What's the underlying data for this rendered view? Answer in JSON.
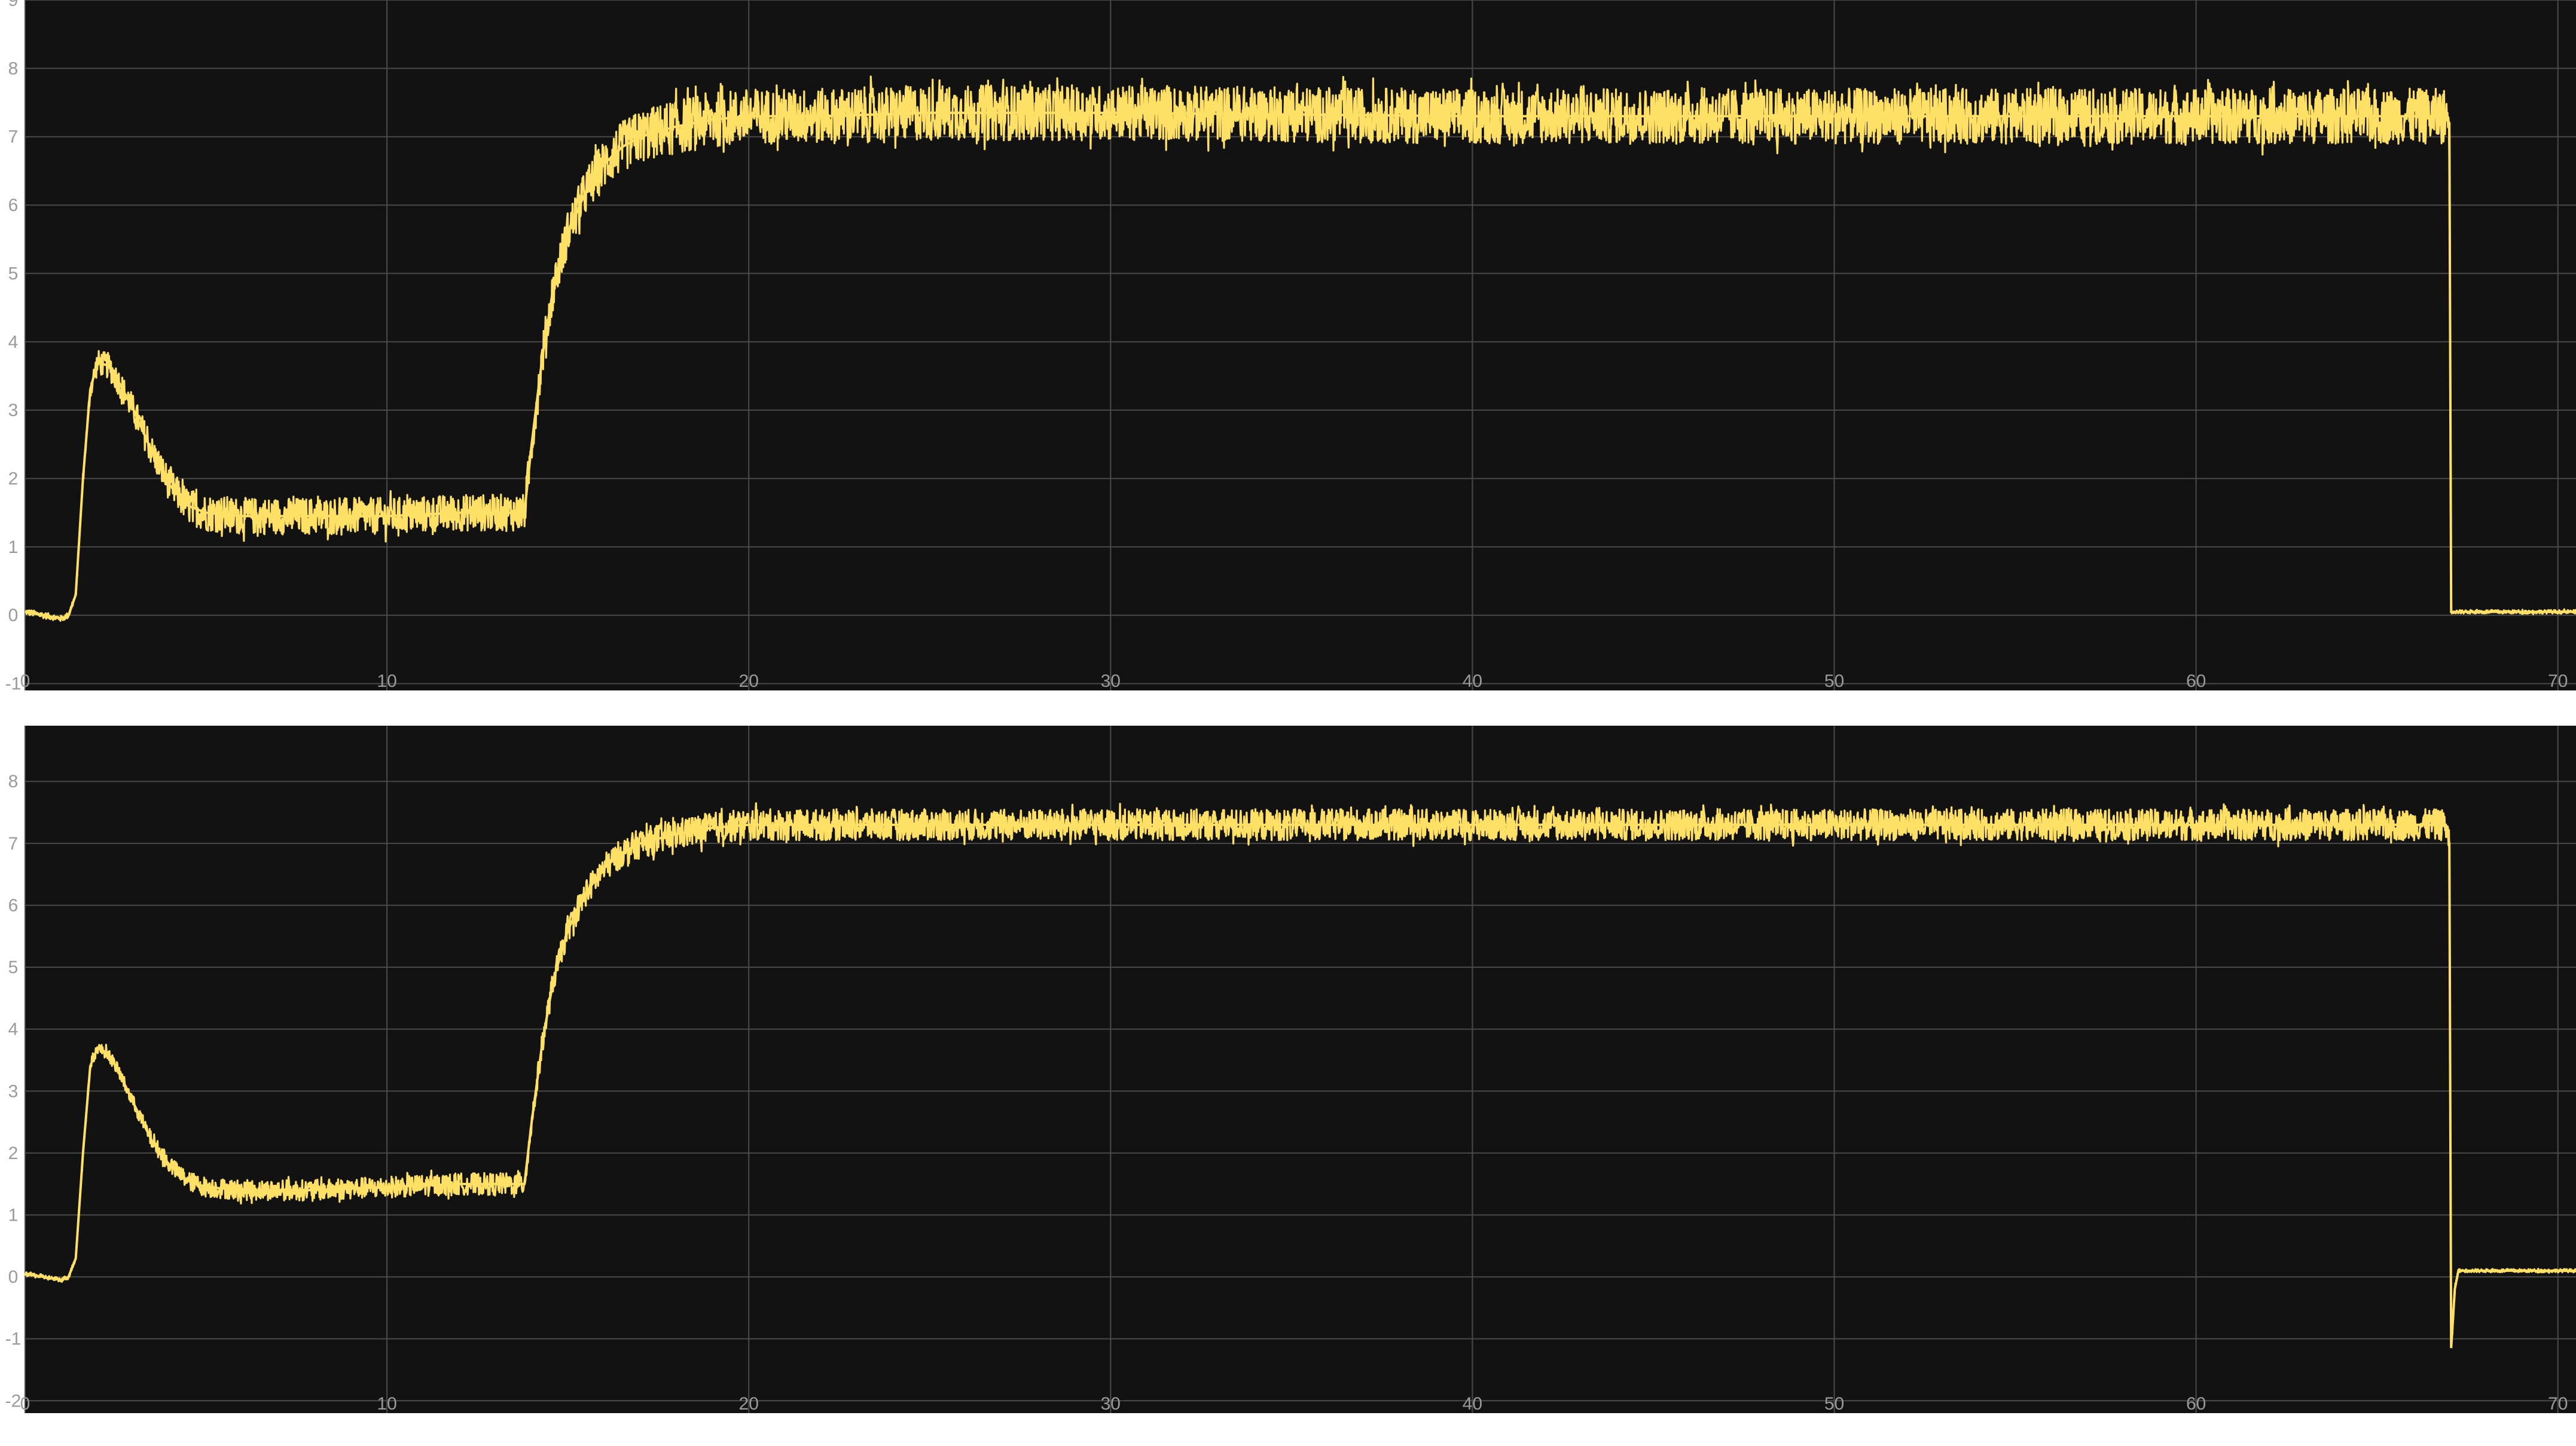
{
  "colors": {
    "background": "#ffffff",
    "plot_background": "#121212",
    "grid": "#4a4a4a",
    "tick_label": "#9a9a9a",
    "signal": "#ffe066"
  },
  "chart_data": [
    {
      "type": "line",
      "title": "",
      "xlabel": "",
      "ylabel": "",
      "xlim": [
        0,
        70.5
      ],
      "ylim": [
        -1.1,
        9
      ],
      "xticks": [
        0,
        10,
        20,
        30,
        40,
        50,
        60,
        70
      ],
      "yticks": [
        -1,
        0,
        1,
        2,
        3,
        4,
        5,
        6,
        7,
        8,
        9
      ],
      "xtick_labels": [
        "0",
        "10",
        "20",
        "30",
        "40",
        "50",
        "60",
        "70"
      ],
      "ytick_labels": [
        "-1",
        "0",
        "1",
        "2",
        "3",
        "4",
        "5",
        "6",
        "7",
        "8",
        "9"
      ],
      "grid": true,
      "series": [
        {
          "band_half_width": [
            [
              0,
              0.05
            ],
            [
              1.4,
              0.05
            ],
            [
              2,
              0.2
            ],
            [
              5,
              0.3
            ],
            [
              13.8,
              0.3
            ],
            [
              16,
              0.4
            ],
            [
              18,
              0.45
            ],
            [
              67,
              0.45
            ],
            [
              67.05,
              0.03
            ],
            [
              70.5,
              0.03
            ]
          ],
          "x": [
            0,
            1.0,
            1.2,
            1.4,
            1.6,
            1.8,
            2.0,
            2.3,
            2.6,
            3.0,
            3.5,
            4.0,
            4.5,
            5.0,
            6.0,
            8.0,
            10.0,
            12.0,
            13.8,
            14.0,
            14.3,
            14.6,
            15.0,
            15.5,
            16.0,
            16.5,
            17.0,
            18.0,
            19.0,
            20.0,
            22.0,
            25.0,
            30.0,
            40.0,
            50.0,
            60.0,
            66.9,
            67.0,
            67.05,
            70.5
          ],
          "y": [
            0.05,
            -0.05,
            0.0,
            0.3,
            2.0,
            3.3,
            3.7,
            3.65,
            3.4,
            3.0,
            2.4,
            1.9,
            1.6,
            1.5,
            1.45,
            1.45,
            1.45,
            1.5,
            1.5,
            2.5,
            3.8,
            4.8,
            5.6,
            6.2,
            6.6,
            6.85,
            7.0,
            7.15,
            7.25,
            7.3,
            7.3,
            7.35,
            7.35,
            7.3,
            7.3,
            7.3,
            7.3,
            7.2,
            0.05,
            0.05
          ]
        }
      ]
    },
    {
      "type": "line",
      "title": "",
      "xlabel": "",
      "ylabel": "",
      "xlim": [
        0,
        70.5
      ],
      "ylim": [
        -2.2,
        8.9
      ],
      "xticks": [
        0,
        10,
        20,
        30,
        40,
        50,
        60,
        70
      ],
      "yticks": [
        -2,
        -1,
        0,
        1,
        2,
        3,
        4,
        5,
        6,
        7,
        8
      ],
      "xtick_labels": [
        "0",
        "10",
        "20",
        "30",
        "40",
        "50",
        "60",
        "70"
      ],
      "ytick_labels": [
        "-2",
        "-1",
        "0",
        "1",
        "2",
        "3",
        "4",
        "5",
        "6",
        "7",
        "8"
      ],
      "grid": true,
      "series": [
        {
          "band_half_width": [
            [
              0,
              0.04
            ],
            [
              1.4,
              0.04
            ],
            [
              2,
              0.1
            ],
            [
              5,
              0.18
            ],
            [
              13.8,
              0.2
            ],
            [
              16,
              0.25
            ],
            [
              18,
              0.28
            ],
            [
              67,
              0.28
            ],
            [
              67.2,
              0.03
            ],
            [
              70.5,
              0.03
            ]
          ],
          "x": [
            0,
            1.0,
            1.2,
            1.4,
            1.6,
            1.8,
            2.0,
            2.3,
            2.6,
            3.0,
            3.5,
            4.0,
            4.5,
            5.0,
            6.0,
            8.0,
            10.0,
            12.0,
            13.8,
            14.0,
            14.3,
            14.6,
            15.0,
            15.5,
            16.0,
            16.5,
            17.0,
            18.0,
            19.0,
            20.0,
            22.0,
            25.0,
            30.0,
            40.0,
            50.0,
            60.0,
            66.9,
            67.0,
            67.05,
            67.15,
            67.25,
            67.4,
            70.5
          ],
          "y": [
            0.05,
            -0.05,
            0.0,
            0.3,
            2.0,
            3.4,
            3.7,
            3.6,
            3.3,
            2.8,
            2.2,
            1.8,
            1.55,
            1.45,
            1.4,
            1.4,
            1.45,
            1.5,
            1.5,
            2.5,
            3.8,
            4.8,
            5.6,
            6.2,
            6.6,
            6.85,
            7.0,
            7.15,
            7.25,
            7.3,
            7.3,
            7.3,
            7.3,
            7.3,
            7.3,
            7.3,
            7.3,
            7.0,
            -1.15,
            -0.2,
            0.1,
            0.1,
            0.1
          ]
        }
      ]
    }
  ]
}
